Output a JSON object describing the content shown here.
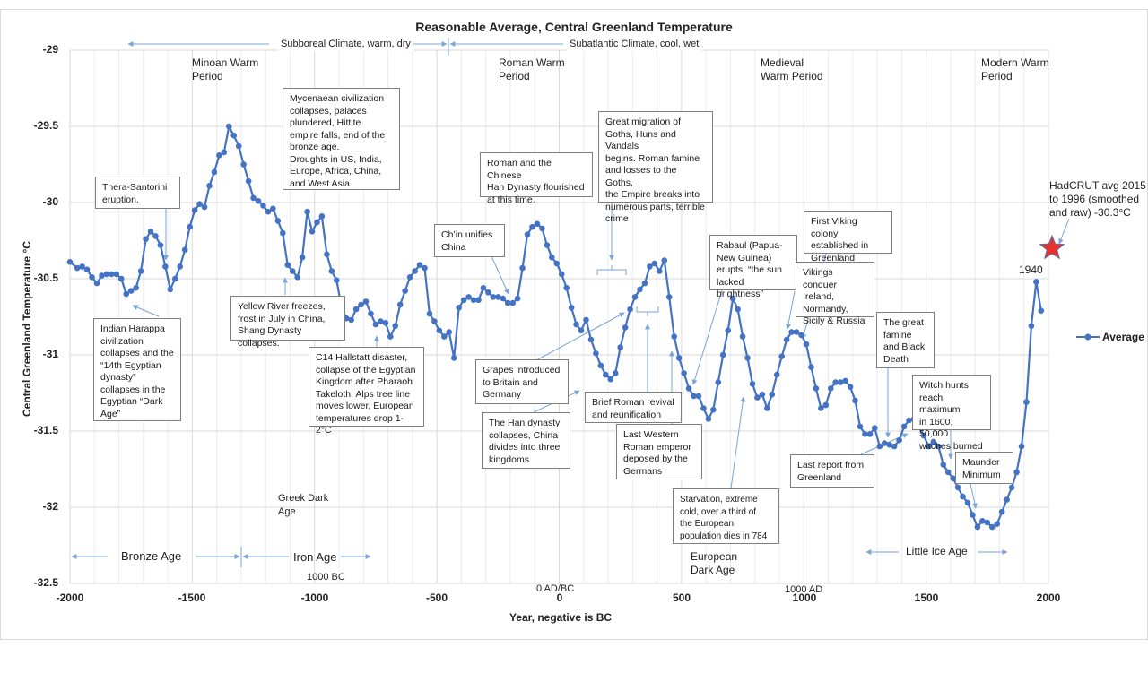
{
  "chart_data": {
    "type": "line",
    "title": "Reasonable Average, Central Greenland Temperature",
    "xlabel": "Year, negative is BC",
    "ylabel": "Central Greenland Temperature °C",
    "xlim": [
      -2000,
      2000
    ],
    "ylim": [
      -32.5,
      -29
    ],
    "grid": true,
    "legend": {
      "position": "right",
      "entries": [
        "Average"
      ]
    },
    "x_ticks": [
      "-2000",
      "-1500",
      "-1000",
      "-500",
      "0",
      "500",
      "1000",
      "1500",
      "2000"
    ],
    "y_ticks": [
      "-29",
      "-29.5",
      "-30",
      "-30.5",
      "-31",
      "-31.5",
      "-32",
      "-32.5"
    ],
    "x_tick_values": [
      -2000,
      -1500,
      -1000,
      -500,
      0,
      500,
      1000,
      1500,
      2000
    ],
    "y_tick_values": [
      -29,
      -29.5,
      -30,
      -30.5,
      -31,
      -31.5,
      -32,
      -32.5
    ],
    "series": [
      {
        "name": "Average",
        "color": "#4472c4",
        "points": [
          [
            -2000,
            -30.39
          ],
          [
            -1970,
            -30.43
          ],
          [
            -1950,
            -30.42
          ],
          [
            -1930,
            -30.44
          ],
          [
            -1910,
            -30.49
          ],
          [
            -1890,
            -30.53
          ],
          [
            -1870,
            -30.48
          ],
          [
            -1850,
            -30.47
          ],
          [
            -1830,
            -30.47
          ],
          [
            -1810,
            -30.47
          ],
          [
            -1790,
            -30.5
          ],
          [
            -1770,
            -30.6
          ],
          [
            -1750,
            -30.58
          ],
          [
            -1730,
            -30.56
          ],
          [
            -1710,
            -30.45
          ],
          [
            -1690,
            -30.24
          ],
          [
            -1670,
            -30.19
          ],
          [
            -1650,
            -30.22
          ],
          [
            -1630,
            -30.28
          ],
          [
            -1610,
            -30.42
          ],
          [
            -1590,
            -30.57
          ],
          [
            -1570,
            -30.5
          ],
          [
            -1550,
            -30.42
          ],
          [
            -1530,
            -30.31
          ],
          [
            -1510,
            -30.16
          ],
          [
            -1490,
            -30.05
          ],
          [
            -1470,
            -30.01
          ],
          [
            -1450,
            -30.03
          ],
          [
            -1430,
            -29.89
          ],
          [
            -1410,
            -29.8
          ],
          [
            -1390,
            -29.69
          ],
          [
            -1370,
            -29.67
          ],
          [
            -1350,
            -29.5
          ],
          [
            -1330,
            -29.56
          ],
          [
            -1310,
            -29.63
          ],
          [
            -1290,
            -29.75
          ],
          [
            -1270,
            -29.86
          ],
          [
            -1250,
            -29.97
          ],
          [
            -1230,
            -29.99
          ],
          [
            -1210,
            -30.02
          ],
          [
            -1190,
            -30.06
          ],
          [
            -1170,
            -30.04
          ],
          [
            -1150,
            -30.12
          ],
          [
            -1130,
            -30.2
          ],
          [
            -1110,
            -30.41
          ],
          [
            -1090,
            -30.45
          ],
          [
            -1070,
            -30.49
          ],
          [
            -1050,
            -30.36
          ],
          [
            -1030,
            -30.06
          ],
          [
            -1010,
            -30.19
          ],
          [
            -990,
            -30.13
          ],
          [
            -970,
            -30.09
          ],
          [
            -950,
            -30.34
          ],
          [
            -930,
            -30.45
          ],
          [
            -910,
            -30.51
          ],
          [
            -890,
            -30.69
          ],
          [
            -870,
            -30.76
          ],
          [
            -850,
            -30.77
          ],
          [
            -830,
            -30.7
          ],
          [
            -810,
            -30.67
          ],
          [
            -790,
            -30.65
          ],
          [
            -770,
            -30.73
          ],
          [
            -750,
            -30.8
          ],
          [
            -730,
            -30.78
          ],
          [
            -710,
            -30.79
          ],
          [
            -690,
            -30.88
          ],
          [
            -670,
            -30.81
          ],
          [
            -650,
            -30.67
          ],
          [
            -630,
            -30.58
          ],
          [
            -610,
            -30.49
          ],
          [
            -590,
            -30.45
          ],
          [
            -570,
            -30.41
          ],
          [
            -550,
            -30.43
          ],
          [
            -530,
            -30.73
          ],
          [
            -510,
            -30.78
          ],
          [
            -490,
            -30.84
          ],
          [
            -470,
            -30.88
          ],
          [
            -450,
            -30.85
          ],
          [
            -430,
            -31.02
          ],
          [
            -410,
            -30.69
          ],
          [
            -390,
            -30.64
          ],
          [
            -370,
            -30.62
          ],
          [
            -350,
            -30.64
          ],
          [
            -330,
            -30.64
          ],
          [
            -310,
            -30.56
          ],
          [
            -290,
            -30.59
          ],
          [
            -270,
            -30.62
          ],
          [
            -250,
            -30.62
          ],
          [
            -230,
            -30.63
          ],
          [
            -210,
            -30.66
          ],
          [
            -190,
            -30.66
          ],
          [
            -170,
            -30.63
          ],
          [
            -150,
            -30.43
          ],
          [
            -130,
            -30.21
          ],
          [
            -110,
            -30.16
          ],
          [
            -90,
            -30.14
          ],
          [
            -70,
            -30.17
          ],
          [
            -50,
            -30.28
          ],
          [
            -30,
            -30.36
          ],
          [
            -10,
            -30.4
          ],
          [
            10,
            -30.47
          ],
          [
            30,
            -30.56
          ],
          [
            50,
            -30.69
          ],
          [
            70,
            -30.8
          ],
          [
            90,
            -30.84
          ],
          [
            110,
            -30.77
          ],
          [
            130,
            -30.9
          ],
          [
            150,
            -30.99
          ],
          [
            170,
            -31.07
          ],
          [
            190,
            -31.13
          ],
          [
            210,
            -31.16
          ],
          [
            230,
            -31.12
          ],
          [
            250,
            -30.95
          ],
          [
            270,
            -30.82
          ],
          [
            290,
            -30.7
          ],
          [
            310,
            -30.62
          ],
          [
            330,
            -30.57
          ],
          [
            350,
            -30.53
          ],
          [
            370,
            -30.42
          ],
          [
            390,
            -30.4
          ],
          [
            410,
            -30.45
          ],
          [
            430,
            -30.38
          ],
          [
            450,
            -30.62
          ],
          [
            470,
            -30.88
          ],
          [
            490,
            -31.02
          ],
          [
            510,
            -31.12
          ],
          [
            530,
            -31.22
          ],
          [
            550,
            -31.27
          ],
          [
            570,
            -31.27
          ],
          [
            590,
            -31.35
          ],
          [
            610,
            -31.42
          ],
          [
            630,
            -31.36
          ],
          [
            650,
            -31.18
          ],
          [
            670,
            -31.0
          ],
          [
            690,
            -30.84
          ],
          [
            710,
            -30.63
          ],
          [
            730,
            -30.7
          ],
          [
            750,
            -30.88
          ],
          [
            770,
            -31.02
          ],
          [
            790,
            -31.19
          ],
          [
            810,
            -31.28
          ],
          [
            830,
            -31.26
          ],
          [
            850,
            -31.35
          ],
          [
            870,
            -31.26
          ],
          [
            890,
            -31.13
          ],
          [
            910,
            -31.01
          ],
          [
            930,
            -30.9
          ],
          [
            950,
            -30.85
          ],
          [
            970,
            -30.85
          ],
          [
            990,
            -30.87
          ],
          [
            1010,
            -30.93
          ],
          [
            1030,
            -31.08
          ],
          [
            1050,
            -31.22
          ],
          [
            1070,
            -31.35
          ],
          [
            1090,
            -31.33
          ],
          [
            1110,
            -31.22
          ],
          [
            1130,
            -31.18
          ],
          [
            1150,
            -31.18
          ],
          [
            1170,
            -31.17
          ],
          [
            1190,
            -31.21
          ],
          [
            1210,
            -31.3
          ],
          [
            1230,
            -31.47
          ],
          [
            1250,
            -31.52
          ],
          [
            1270,
            -31.52
          ],
          [
            1290,
            -31.48
          ],
          [
            1310,
            -31.6
          ],
          [
            1330,
            -31.58
          ],
          [
            1350,
            -31.59
          ],
          [
            1370,
            -31.6
          ],
          [
            1390,
            -31.56
          ],
          [
            1410,
            -31.47
          ],
          [
            1430,
            -31.43
          ],
          [
            1450,
            -31.42
          ],
          [
            1470,
            -31.47
          ],
          [
            1490,
            -31.53
          ],
          [
            1510,
            -31.6
          ],
          [
            1530,
            -31.57
          ],
          [
            1550,
            -31.6
          ],
          [
            1570,
            -31.72
          ],
          [
            1590,
            -31.77
          ],
          [
            1610,
            -31.81
          ],
          [
            1630,
            -31.87
          ],
          [
            1650,
            -31.93
          ],
          [
            1670,
            -31.97
          ],
          [
            1690,
            -32.05
          ],
          [
            1710,
            -32.13
          ],
          [
            1730,
            -32.09
          ],
          [
            1750,
            -32.1
          ],
          [
            1770,
            -32.13
          ],
          [
            1790,
            -32.11
          ],
          [
            1810,
            -32.03
          ],
          [
            1830,
            -31.95
          ],
          [
            1850,
            -31.87
          ],
          [
            1870,
            -31.77
          ],
          [
            1890,
            -31.6
          ],
          [
            1910,
            -31.31
          ],
          [
            1930,
            -30.81
          ],
          [
            1950,
            -30.52
          ],
          [
            1970,
            -30.71
          ]
        ]
      }
    ],
    "marker": {
      "name": "HadCRUT avg 2015 to 1996 (smoothed and raw)",
      "x": 2000,
      "y": -30.3,
      "color": "#e8312f",
      "shape": "star"
    },
    "annotations_boxed": [
      "Mycenaean civilization\ncollapses, palaces\nplundered, Hittite\nempire falls, end of the\nbronze age.\nDroughts in US, India,\nEurope, Africa, China,\nand West Asia.",
      "Thera-Santorini\neruption.",
      "Indian Harappa\ncivilization\ncollapses and the\n“14th Egyptian\ndynasty”\ncollapses in the\nEgyptian “Dark\nAge”",
      "Yellow River freezes,\nfrost in July in China,\nShang Dynasty collapses.",
      "C14 Hallstatt disaster,\ncollapse of the Egyptian\nKingdom after Pharaoh\nTakeloth, Alps tree line\nmoves lower, European\ntemperatures drop 1-2°C",
      "Roman and the Chinese\nHan Dynasty flourished\nat this time.",
      "Great migration of\nGoths, Huns and Vandals\nbegins. Roman famine\nand losses to the Goths,\nthe Empire breaks into\nnumerous parts, terrible\ncrime",
      "Ch’in unifies\nChina",
      "Grapes introduced\nto Britain and\nGermany",
      "The Han dynasty\ncollapses, China\ndivides into three\nkingdoms",
      "Brief Roman revival\nand reunification",
      "Last Western\nRoman emperor\ndeposed by the\nGermans",
      "Starvation, extreme\ncold, over a third of\nthe European\npopulation dies in 784",
      "Rabaul (Papua-\nNew Guinea)\nerupts, “the sun\nlacked brightness”",
      "First Viking colony\nestablished in\nGreenland",
      "Vikings conquer\nIreland,\nNormandy,\nSicily & Russia",
      "The great\nfamine\nand Black\nDeath",
      "Witch hunts\nreach maximum\nin 1600, 50,000\nwitches burned",
      "Last report from\nGreenland",
      "Maunder\nMinimum"
    ],
    "annotations_free": [
      "Subboreal Climate, warm, dry",
      "Subatlantic Climate, cool, wet",
      "Minoan Warm\nPeriod",
      "Roman Warm\nPeriod",
      "Medieval\nWarm Period",
      "Modern Warm\nPeriod",
      "HadCRUT avg 2015\nto 1996 (smoothed\nand raw) -30.3°C",
      "1940",
      "Greek Dark\nAge",
      "Bronze Age",
      "Iron Age",
      "1000 BC",
      "0 AD/BC",
      "1000 AD",
      "European\nDark Age",
      "Little Ice Age"
    ]
  }
}
